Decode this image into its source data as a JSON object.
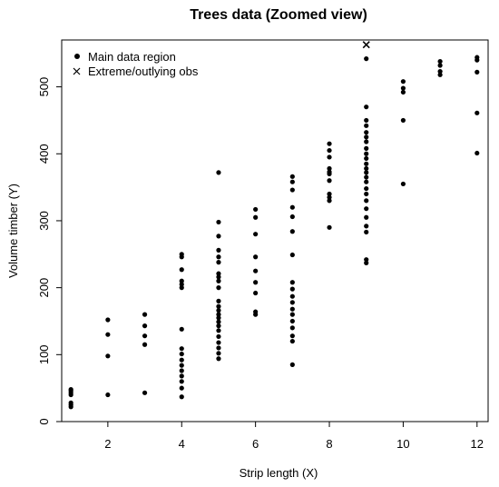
{
  "chart_data": {
    "type": "scatter",
    "title": "Trees data (Zoomed view)",
    "xlabel": "Strip length (X)",
    "ylabel": "Volume timber (Y)",
    "xlim": [
      0.75,
      12.3
    ],
    "ylim": [
      0,
      570
    ],
    "x_ticks": [
      2,
      4,
      6,
      8,
      10,
      12
    ],
    "y_ticks": [
      0,
      100,
      200,
      300,
      400,
      500
    ],
    "grid": false,
    "legend_position": "top-left",
    "legend": [
      {
        "symbol": "dot",
        "label": "Main data region"
      },
      {
        "symbol": "cross",
        "label": "Extreme/outlying obs"
      }
    ],
    "series": [
      {
        "name": "Main data region",
        "marker": "dot",
        "points": [
          [
            1,
            22
          ],
          [
            1,
            25
          ],
          [
            1,
            28
          ],
          [
            1,
            40
          ],
          [
            1,
            43
          ],
          [
            1,
            46
          ],
          [
            1,
            48
          ],
          [
            2,
            40
          ],
          [
            2,
            98
          ],
          [
            2,
            130
          ],
          [
            2,
            152
          ],
          [
            3,
            43
          ],
          [
            3,
            115
          ],
          [
            3,
            128
          ],
          [
            3,
            143
          ],
          [
            3,
            160
          ],
          [
            4,
            37
          ],
          [
            4,
            50
          ],
          [
            4,
            60
          ],
          [
            4,
            68
          ],
          [
            4,
            76
          ],
          [
            4,
            84
          ],
          [
            4,
            92
          ],
          [
            4,
            101
          ],
          [
            4,
            109
          ],
          [
            4,
            138
          ],
          [
            4,
            200
          ],
          [
            4,
            205
          ],
          [
            4,
            210
          ],
          [
            4,
            227
          ],
          [
            4,
            246
          ],
          [
            4,
            250
          ],
          [
            5,
            94
          ],
          [
            5,
            102
          ],
          [
            5,
            110
          ],
          [
            5,
            118
          ],
          [
            5,
            127
          ],
          [
            5,
            136
          ],
          [
            5,
            143
          ],
          [
            5,
            149
          ],
          [
            5,
            155
          ],
          [
            5,
            160
          ],
          [
            5,
            166
          ],
          [
            5,
            172
          ],
          [
            5,
            180
          ],
          [
            5,
            200
          ],
          [
            5,
            210
          ],
          [
            5,
            216
          ],
          [
            5,
            221
          ],
          [
            5,
            238
          ],
          [
            5,
            246
          ],
          [
            5,
            256
          ],
          [
            5,
            277
          ],
          [
            5,
            298
          ],
          [
            5,
            372
          ],
          [
            6,
            160
          ],
          [
            6,
            164
          ],
          [
            6,
            192
          ],
          [
            6,
            208
          ],
          [
            6,
            225
          ],
          [
            6,
            246
          ],
          [
            6,
            280
          ],
          [
            6,
            305
          ],
          [
            6,
            317
          ],
          [
            7,
            85
          ],
          [
            7,
            120
          ],
          [
            7,
            128
          ],
          [
            7,
            140
          ],
          [
            7,
            150
          ],
          [
            7,
            160
          ],
          [
            7,
            168
          ],
          [
            7,
            178
          ],
          [
            7,
            187
          ],
          [
            7,
            198
          ],
          [
            7,
            208
          ],
          [
            7,
            249
          ],
          [
            7,
            284
          ],
          [
            7,
            306
          ],
          [
            7,
            320
          ],
          [
            7,
            346
          ],
          [
            7,
            358
          ],
          [
            7,
            366
          ],
          [
            8,
            290
          ],
          [
            8,
            330
          ],
          [
            8,
            335
          ],
          [
            8,
            340
          ],
          [
            8,
            360
          ],
          [
            8,
            370
          ],
          [
            8,
            373
          ],
          [
            8,
            378
          ],
          [
            8,
            395
          ],
          [
            8,
            405
          ],
          [
            8,
            415
          ],
          [
            9,
            237
          ],
          [
            9,
            242
          ],
          [
            9,
            283
          ],
          [
            9,
            292
          ],
          [
            9,
            305
          ],
          [
            9,
            318
          ],
          [
            9,
            330
          ],
          [
            9,
            340
          ],
          [
            9,
            348
          ],
          [
            9,
            358
          ],
          [
            9,
            365
          ],
          [
            9,
            372
          ],
          [
            9,
            378
          ],
          [
            9,
            385
          ],
          [
            9,
            393
          ],
          [
            9,
            400
          ],
          [
            9,
            408
          ],
          [
            9,
            418
          ],
          [
            9,
            425
          ],
          [
            9,
            432
          ],
          [
            9,
            442
          ],
          [
            9,
            450
          ],
          [
            9,
            470
          ],
          [
            9,
            542
          ],
          [
            10,
            355
          ],
          [
            10,
            450
          ],
          [
            10,
            492
          ],
          [
            10,
            498
          ],
          [
            10,
            508
          ],
          [
            11,
            518
          ],
          [
            11,
            523
          ],
          [
            11,
            532
          ],
          [
            11,
            538
          ],
          [
            12,
            401
          ],
          [
            12,
            461
          ],
          [
            12,
            522
          ],
          [
            12,
            540
          ],
          [
            12,
            544
          ]
        ]
      },
      {
        "name": "Extreme/outlying obs",
        "marker": "cross",
        "points": [
          [
            9,
            563
          ]
        ]
      }
    ]
  }
}
